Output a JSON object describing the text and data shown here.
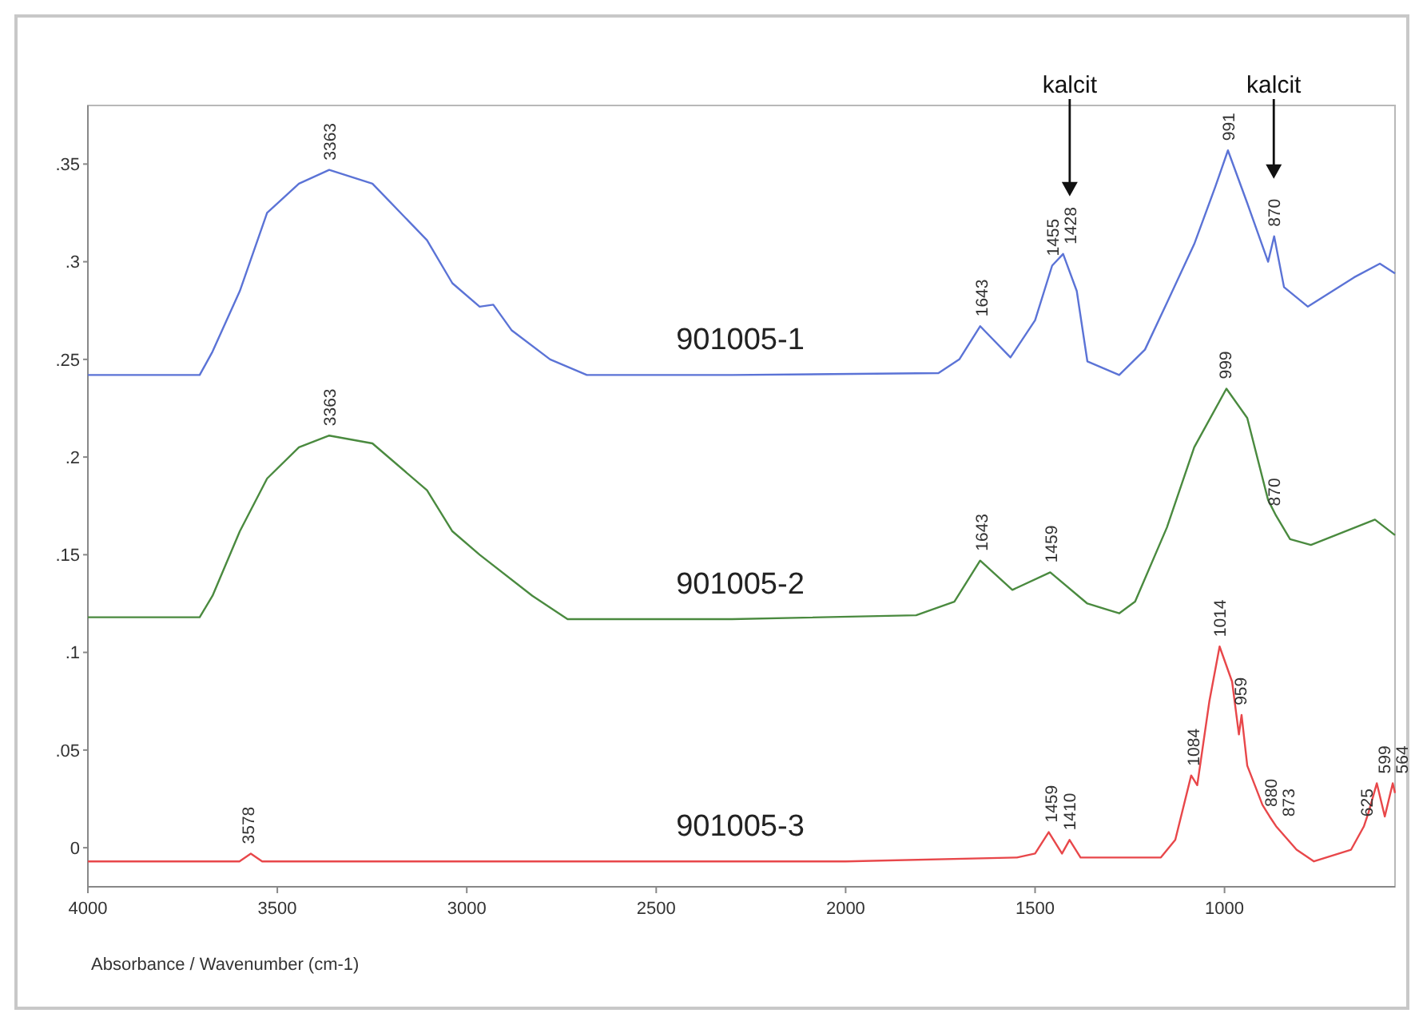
{
  "chart_data": {
    "type": "line",
    "xlabel": "Absorbance / Wavenumber (cm-1)",
    "xlim": [
      4000,
      550
    ],
    "xticks": [
      4000,
      3500,
      3000,
      2500,
      2000,
      1500,
      1000
    ],
    "ylim": [
      -0.02,
      0.38
    ],
    "yticks": [
      {
        "value": 0,
        "label": "0"
      },
      {
        "value": 0.05,
        "label": ".05"
      },
      {
        "value": 0.1,
        "label": ".1"
      },
      {
        "value": 0.15,
        "label": ".15"
      },
      {
        "value": 0.2,
        "label": ".2"
      },
      {
        "value": 0.25,
        "label": ".25"
      },
      {
        "value": 0.3,
        "label": ".3"
      },
      {
        "value": 0.35,
        "label": ".35"
      }
    ],
    "grid": false,
    "legend": false,
    "series": [
      {
        "name": "901005-1",
        "color": "#5b73d6",
        "x": [
          4000,
          3850,
          3705,
          3671,
          3599,
          3527,
          3443,
          3363,
          3249,
          3105,
          3038,
          2966,
          2930,
          2882,
          2780,
          2683,
          2300,
          1755,
          1700,
          1645,
          1565,
          1500,
          1455,
          1426,
          1390,
          1362,
          1278,
          1210,
          1152,
          1080,
          1025,
          991,
          940,
          885,
          869,
          843,
          780,
          658,
          590,
          550
        ],
        "values": [
          0.242,
          0.242,
          0.242,
          0.254,
          0.285,
          0.325,
          0.34,
          0.347,
          0.34,
          0.311,
          0.289,
          0.277,
          0.278,
          0.265,
          0.25,
          0.242,
          0.242,
          0.243,
          0.25,
          0.267,
          0.251,
          0.27,
          0.298,
          0.304,
          0.285,
          0.249,
          0.242,
          0.255,
          0.279,
          0.309,
          0.338,
          0.357,
          0.33,
          0.3,
          0.313,
          0.287,
          0.277,
          0.292,
          0.299,
          0.294
        ]
      },
      {
        "name": "901005-2",
        "color": "#4a8a3f",
        "x": [
          4000,
          3850,
          3705,
          3671,
          3599,
          3527,
          3443,
          3363,
          3249,
          3105,
          3038,
          2966,
          2827,
          2734,
          2300,
          1814,
          1713,
          1645,
          1560,
          1460,
          1362,
          1278,
          1236,
          1152,
          1080,
          995,
          940,
          885,
          864,
          827,
          772,
          603,
          550
        ],
        "values": [
          0.118,
          0.118,
          0.118,
          0.129,
          0.162,
          0.189,
          0.205,
          0.211,
          0.207,
          0.183,
          0.162,
          0.15,
          0.129,
          0.117,
          0.117,
          0.119,
          0.126,
          0.147,
          0.132,
          0.141,
          0.125,
          0.12,
          0.126,
          0.164,
          0.205,
          0.235,
          0.22,
          0.178,
          0.17,
          0.158,
          0.155,
          0.168,
          0.16
        ]
      },
      {
        "name": "901005-3",
        "color": "#e8474a",
        "x": [
          4000,
          3700,
          3600,
          3570,
          3540,
          3000,
          2500,
          2000,
          1548,
          1500,
          1464,
          1429,
          1409,
          1380,
          1168,
          1130,
          1088,
          1072,
          1040,
          1013,
          980,
          962,
          955,
          940,
          900,
          881,
          864,
          810,
          764,
          666,
          632,
          620,
          598,
          577,
          556,
          550
        ],
        "values": [
          -0.007,
          -0.007,
          -0.007,
          -0.003,
          -0.007,
          -0.007,
          -0.007,
          -0.007,
          -0.005,
          -0.003,
          0.008,
          -0.003,
          0.004,
          -0.005,
          -0.005,
          0.004,
          0.037,
          0.032,
          0.075,
          0.103,
          0.085,
          0.058,
          0.068,
          0.042,
          0.022,
          0.016,
          0.011,
          -0.001,
          -0.007,
          -0.001,
          0.011,
          0.018,
          0.033,
          0.016,
          0.033,
          0.028
        ]
      }
    ],
    "annotations": [
      "kalcit",
      "kalcit",
      {
        "text": "3363",
        "x": 3363,
        "y": 0.347
      },
      {
        "text": "1643",
        "x": 1643,
        "y": 0.267
      },
      {
        "text": "1455",
        "x": 1455,
        "y": 0.298
      },
      {
        "text": "1428",
        "x": 1428,
        "y": 0.304
      },
      {
        "text": "991",
        "x": 991,
        "y": 0.357
      },
      {
        "text": "870",
        "x": 870,
        "y": 0.313
      },
      {
        "text": "3363",
        "x": 3363,
        "y": 0.211
      },
      {
        "text": "1643",
        "x": 1643,
        "y": 0.147
      },
      {
        "text": "1459",
        "x": 1459,
        "y": 0.141
      },
      {
        "text": "999",
        "x": 999,
        "y": 0.235
      },
      {
        "text": "870",
        "x": 870,
        "y": 0.17
      },
      {
        "text": "3578",
        "x": 3578,
        "y": -0.003
      },
      {
        "text": "1459",
        "x": 1459,
        "y": 0.008
      },
      {
        "text": "1410",
        "x": 1410,
        "y": 0.004
      },
      {
        "text": "1084",
        "x": 1084,
        "y": 0.037
      },
      {
        "text": "1014",
        "x": 1014,
        "y": 0.103
      },
      {
        "text": "959",
        "x": 959,
        "y": 0.068
      },
      {
        "text": "880",
        "x": 880,
        "y": 0.016
      },
      {
        "text": "873",
        "x": 873,
        "y": 0.011
      },
      {
        "text": "625",
        "x": 625,
        "y": 0.011
      },
      {
        "text": "599",
        "x": 599,
        "y": 0.033
      },
      {
        "text": "564",
        "x": 564,
        "y": 0.033
      }
    ]
  }
}
